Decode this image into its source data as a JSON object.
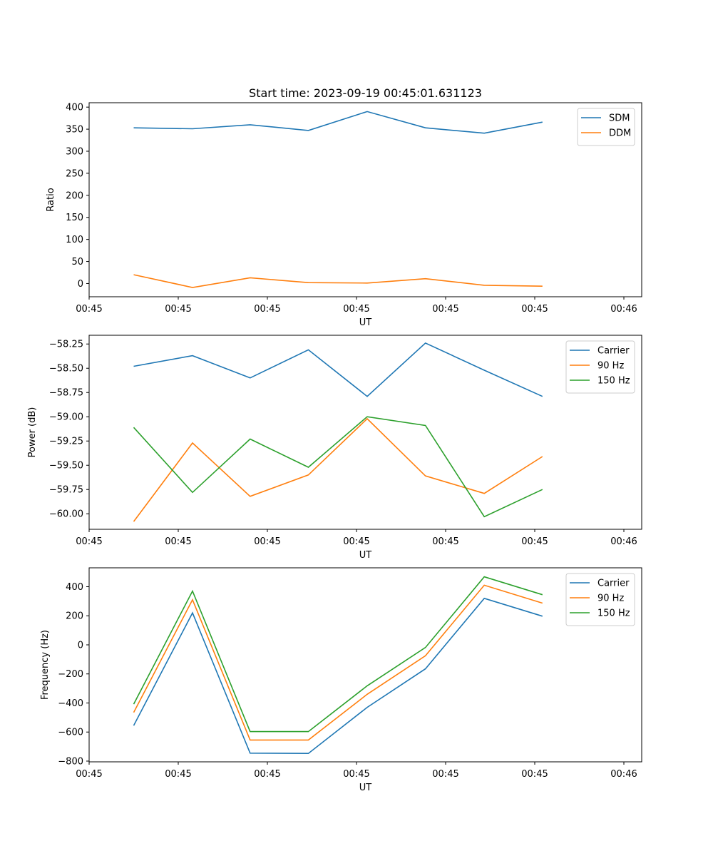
{
  "title": "Start time: 2023-09-19 00:45:01.631123",
  "chart_data": [
    {
      "type": "line",
      "title": "Start time: 2023-09-19 00:45:01.631123",
      "xlabel": "UT",
      "ylabel": "Ratio",
      "ylim": [
        -30,
        410
      ],
      "yticks": [
        0,
        50,
        100,
        150,
        200,
        250,
        300,
        350,
        400
      ],
      "xlim": [
        0,
        9.3
      ],
      "xtick_positions": [
        0,
        1.5,
        3,
        4.5,
        6,
        7.5,
        9
      ],
      "xtick_labels": [
        "00:45",
        "00:45",
        "00:45",
        "00:45",
        "00:45",
        "00:45",
        "00:46"
      ],
      "x": [
        0.75,
        1.74,
        2.71,
        3.69,
        4.68,
        5.66,
        6.65,
        7.63
      ],
      "legend": "top-right",
      "series": [
        {
          "name": "SDM",
          "color": "#1f77b4",
          "values": [
            353,
            351,
            360,
            347,
            390,
            353,
            341,
            366
          ]
        },
        {
          "name": "DDM",
          "color": "#ff7f0e",
          "values": [
            20,
            -9,
            13,
            2,
            1,
            11,
            -4,
            -6
          ]
        }
      ]
    },
    {
      "type": "line",
      "title": "",
      "xlabel": "UT",
      "ylabel": "Power (dB)",
      "ylim": [
        -60.16,
        -58.16
      ],
      "yticks": [
        -60.0,
        -59.75,
        -59.5,
        -59.25,
        -59.0,
        -58.75,
        -58.5,
        -58.25
      ],
      "ytick_labels": [
        "−60.00",
        "−59.75",
        "−59.50",
        "−59.25",
        "−59.00",
        "−58.75",
        "−58.50",
        "−58.25"
      ],
      "xlim": [
        0,
        9.3
      ],
      "xtick_positions": [
        0,
        1.5,
        3,
        4.5,
        6,
        7.5,
        9
      ],
      "xtick_labels": [
        "00:45",
        "00:45",
        "00:45",
        "00:45",
        "00:45",
        "00:45",
        "00:46"
      ],
      "x": [
        0.75,
        1.74,
        2.71,
        3.69,
        4.68,
        5.66,
        6.65,
        7.63
      ],
      "legend": "top-right",
      "series": [
        {
          "name": "Carrier",
          "color": "#1f77b4",
          "values": [
            -58.48,
            -58.37,
            -58.6,
            -58.31,
            -58.79,
            -58.24,
            -58.52,
            -58.79
          ]
        },
        {
          "name": "90 Hz",
          "color": "#ff7f0e",
          "values": [
            -60.08,
            -59.27,
            -59.82,
            -59.6,
            -59.02,
            -59.61,
            -59.79,
            -59.41
          ]
        },
        {
          "name": "150 Hz",
          "color": "#2ca02c",
          "values": [
            -59.11,
            -59.78,
            -59.23,
            -59.52,
            -59.0,
            -59.09,
            -60.03,
            -59.75
          ]
        }
      ]
    },
    {
      "type": "line",
      "title": "",
      "xlabel": "UT",
      "ylabel": "Frequency (Hz)",
      "ylim": [
        -805,
        530
      ],
      "yticks": [
        -800,
        -600,
        -400,
        -200,
        0,
        200,
        400
      ],
      "ytick_labels": [
        "−800",
        "−600",
        "−400",
        "−200",
        "0",
        "200",
        "400"
      ],
      "xlim": [
        0,
        9.3
      ],
      "xtick_positions": [
        0,
        1.5,
        3,
        4.5,
        6,
        7.5,
        9
      ],
      "xtick_labels": [
        "00:45",
        "00:45",
        "00:45",
        "00:45",
        "00:45",
        "00:45",
        "00:46"
      ],
      "x": [
        0.75,
        1.74,
        2.71,
        3.69,
        4.68,
        5.66,
        6.65,
        7.63
      ],
      "legend": "top-right",
      "series": [
        {
          "name": "Carrier",
          "color": "#1f77b4",
          "values": [
            -555,
            220,
            -745,
            -747,
            -430,
            -165,
            320,
            197
          ]
        },
        {
          "name": "90 Hz",
          "color": "#ff7f0e",
          "values": [
            -465,
            310,
            -655,
            -655,
            -340,
            -75,
            410,
            287
          ]
        },
        {
          "name": "150 Hz",
          "color": "#2ca02c",
          "values": [
            -408,
            370,
            -597,
            -597,
            -282,
            -18,
            468,
            345
          ]
        }
      ]
    }
  ]
}
